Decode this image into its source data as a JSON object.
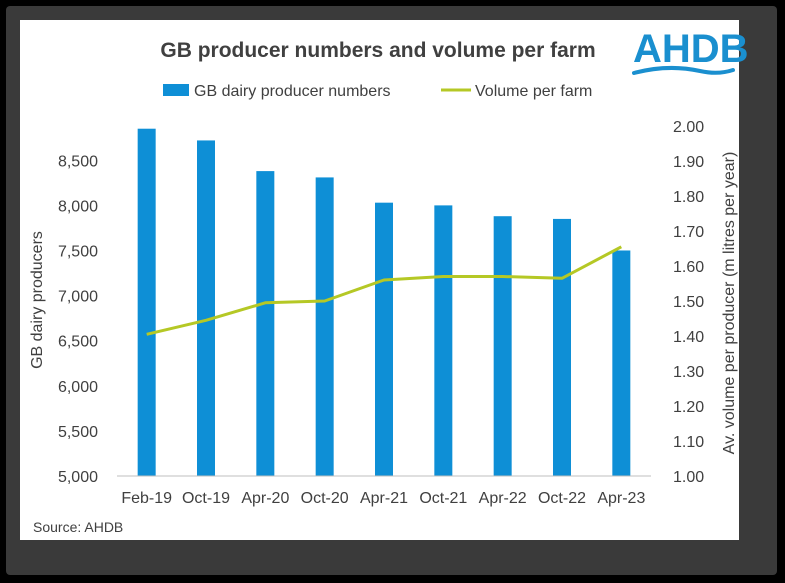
{
  "logo": {
    "text": "AHDB",
    "color": "#1a8fcf"
  },
  "source": "Source: AHDB",
  "chart_data": {
    "type": "bar",
    "title": "GB producer numbers and volume per farm",
    "categories": [
      "Feb-19",
      "Oct-19",
      "Apr-20",
      "Oct-20",
      "Apr-21",
      "Oct-21",
      "Apr-22",
      "Oct-22",
      "Apr-23"
    ],
    "series": [
      {
        "name": "GB dairy producer numbers",
        "type": "bar",
        "axis": "left",
        "color": "#0e8fd6",
        "values": [
          8850,
          8720,
          8380,
          8310,
          8030,
          8000,
          7880,
          7850,
          7500
        ]
      },
      {
        "name": "Volume per farm",
        "type": "line",
        "axis": "right",
        "color": "#b5c825",
        "values": [
          1.405,
          1.445,
          1.495,
          1.5,
          1.56,
          1.57,
          1.57,
          1.565,
          1.655
        ]
      }
    ],
    "ylabel": "GB dairy producers",
    "ylabel_right": "Av. volume per producer (m litres per year)",
    "ylim": [
      5000,
      8850
    ],
    "yticks": [
      "5,000",
      "5,500",
      "6,000",
      "6,500",
      "7,000",
      "7,500",
      "8,000",
      "8,500"
    ],
    "ylim_right": [
      1.0,
      2.0
    ],
    "yticks_right": [
      "1.00",
      "1.10",
      "1.20",
      "1.30",
      "1.40",
      "1.50",
      "1.60",
      "1.70",
      "1.80",
      "1.90",
      "2.00"
    ],
    "legend_position": "top",
    "grid": false
  }
}
